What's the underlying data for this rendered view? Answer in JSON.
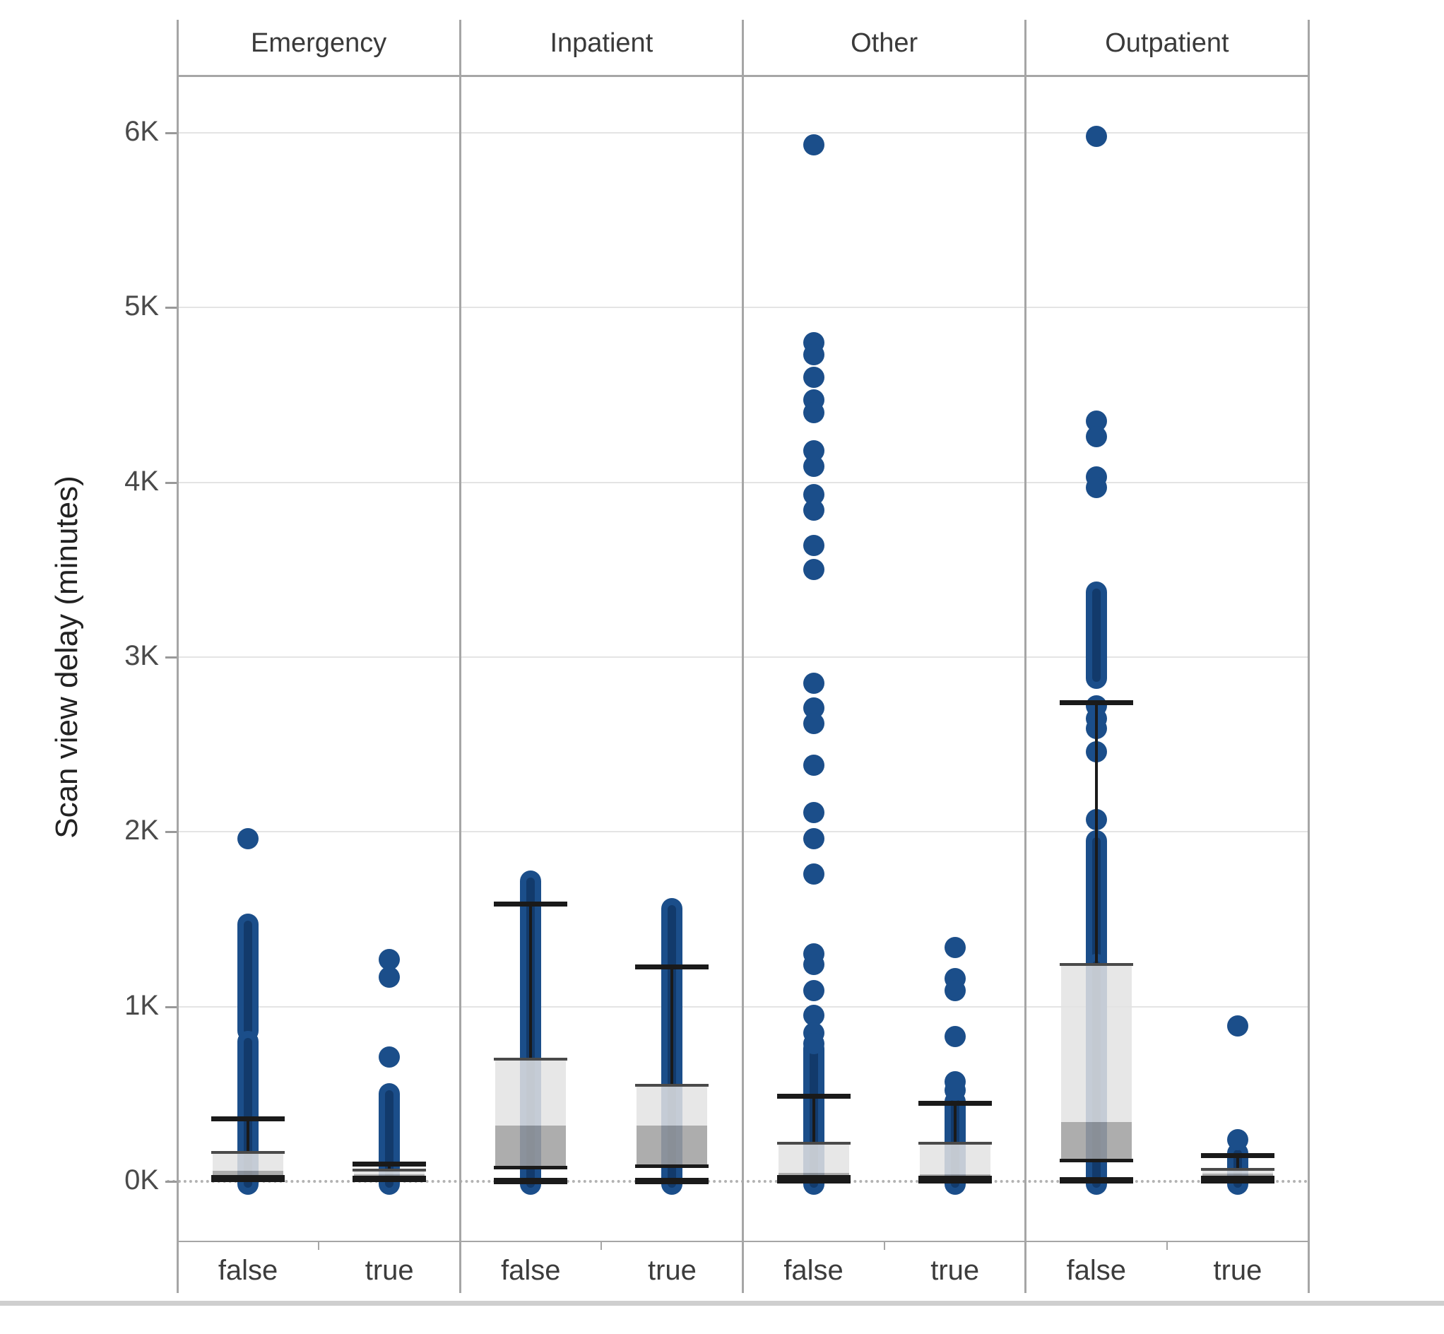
{
  "colors": {
    "dot": "#1b4e8a",
    "dot_core": "#123a6b",
    "box_light": "#e3e3e3",
    "box_dark": "#9f9f9f",
    "line_black": "#1a1a1a",
    "q3_line": "#4a4a4a",
    "grid": "#e4e4e4",
    "zero_line": "#b3b3b3",
    "border": "#a6a6a6",
    "text": "#3c3c3c",
    "bottom_rule": "#cfcfcf"
  },
  "chart_data": {
    "type": "boxplot-with-outliers",
    "title": "",
    "ylabel": "Scan view delay (minutes)",
    "ylim": [
      -340,
      6330
    ],
    "grid": "horizontal, 1000-minute intervals, dotted baseline at 0",
    "legend": "none",
    "y_ticks": [
      {
        "label": "0K",
        "value": 0
      },
      {
        "label": "1K",
        "value": 1000
      },
      {
        "label": "2K",
        "value": 2000
      },
      {
        "label": "3K",
        "value": 3000
      },
      {
        "label": "4K",
        "value": 4000
      },
      {
        "label": "5K",
        "value": 5000
      },
      {
        "label": "6K",
        "value": 6000
      }
    ],
    "panels": [
      {
        "name": "Emergency",
        "groups": [
          {
            "label": "false",
            "box": {
              "whisker_low": 15,
              "q1": 30,
              "median": 60,
              "q3": 165,
              "whisker_high": 360
            },
            "outlier_dots": [
              1960
            ],
            "dot_strips": [
              [
                860,
                1470
              ],
              [
                -15,
                800
              ]
            ]
          },
          {
            "label": "true",
            "box": {
              "whisker_low": 15,
              "q1": 25,
              "median": 40,
              "q3": 65,
              "whisker_high": 100
            },
            "outlier_dots": [
              1270,
              1170,
              710
            ],
            "dot_strips": [
              [
                -15,
                500
              ]
            ]
          }
        ]
      },
      {
        "name": "Inpatient",
        "groups": [
          {
            "label": "false",
            "box": {
              "whisker_low": 5,
              "q1": 80,
              "median": 320,
              "q3": 700,
              "whisker_high": 1590
            },
            "outlier_dots": [],
            "dot_strips": [
              [
                -15,
                1720
              ]
            ]
          },
          {
            "label": "true",
            "box": {
              "whisker_low": 5,
              "q1": 90,
              "median": 320,
              "q3": 550,
              "whisker_high": 1230
            },
            "outlier_dots": [],
            "dot_strips": [
              [
                -15,
                1560
              ]
            ]
          }
        ]
      },
      {
        "name": "Other",
        "groups": [
          {
            "label": "false",
            "box": {
              "whisker_low": 10,
              "q1": 30,
              "median": 50,
              "q3": 220,
              "whisker_high": 490
            },
            "outlier_dots": [
              5930,
              4800,
              4730,
              4600,
              4470,
              4400,
              4180,
              4090,
              3930,
              3840,
              3640,
              3500,
              2850,
              2710,
              2620,
              2380,
              2110,
              1960,
              1760,
              1300,
              1240,
              1090,
              950,
              850,
              790
            ],
            "dot_strips": [
              [
                -15,
                760
              ]
            ]
          },
          {
            "label": "true",
            "box": {
              "whisker_low": 10,
              "q1": 25,
              "median": 40,
              "q3": 220,
              "whisker_high": 450
            },
            "outlier_dots": [
              1340,
              1160,
              1090,
              830,
              570,
              520
            ],
            "dot_strips": [
              [
                -15,
                455
              ]
            ]
          }
        ]
      },
      {
        "name": "Outpatient",
        "groups": [
          {
            "label": "false",
            "box": {
              "whisker_low": 10,
              "q1": 120,
              "median": 340,
              "q3": 1240,
              "whisker_high": 2740
            },
            "outlier_dots": [
              5980,
              4350,
              4260,
              4030,
              3970,
              2720,
              2650,
              2590,
              2460,
              2070
            ],
            "dot_strips": [
              [
                2880,
                3370
              ],
              [
                1240,
                1950
              ],
              [
                -15,
                1240
              ]
            ]
          },
          {
            "label": "true",
            "box": {
              "whisker_low": 10,
              "q1": 25,
              "median": 45,
              "q3": 70,
              "whisker_high": 150
            },
            "outlier_dots": [
              890,
              240
            ],
            "dot_strips": [
              [
                -15,
                160
              ]
            ]
          }
        ]
      }
    ]
  }
}
